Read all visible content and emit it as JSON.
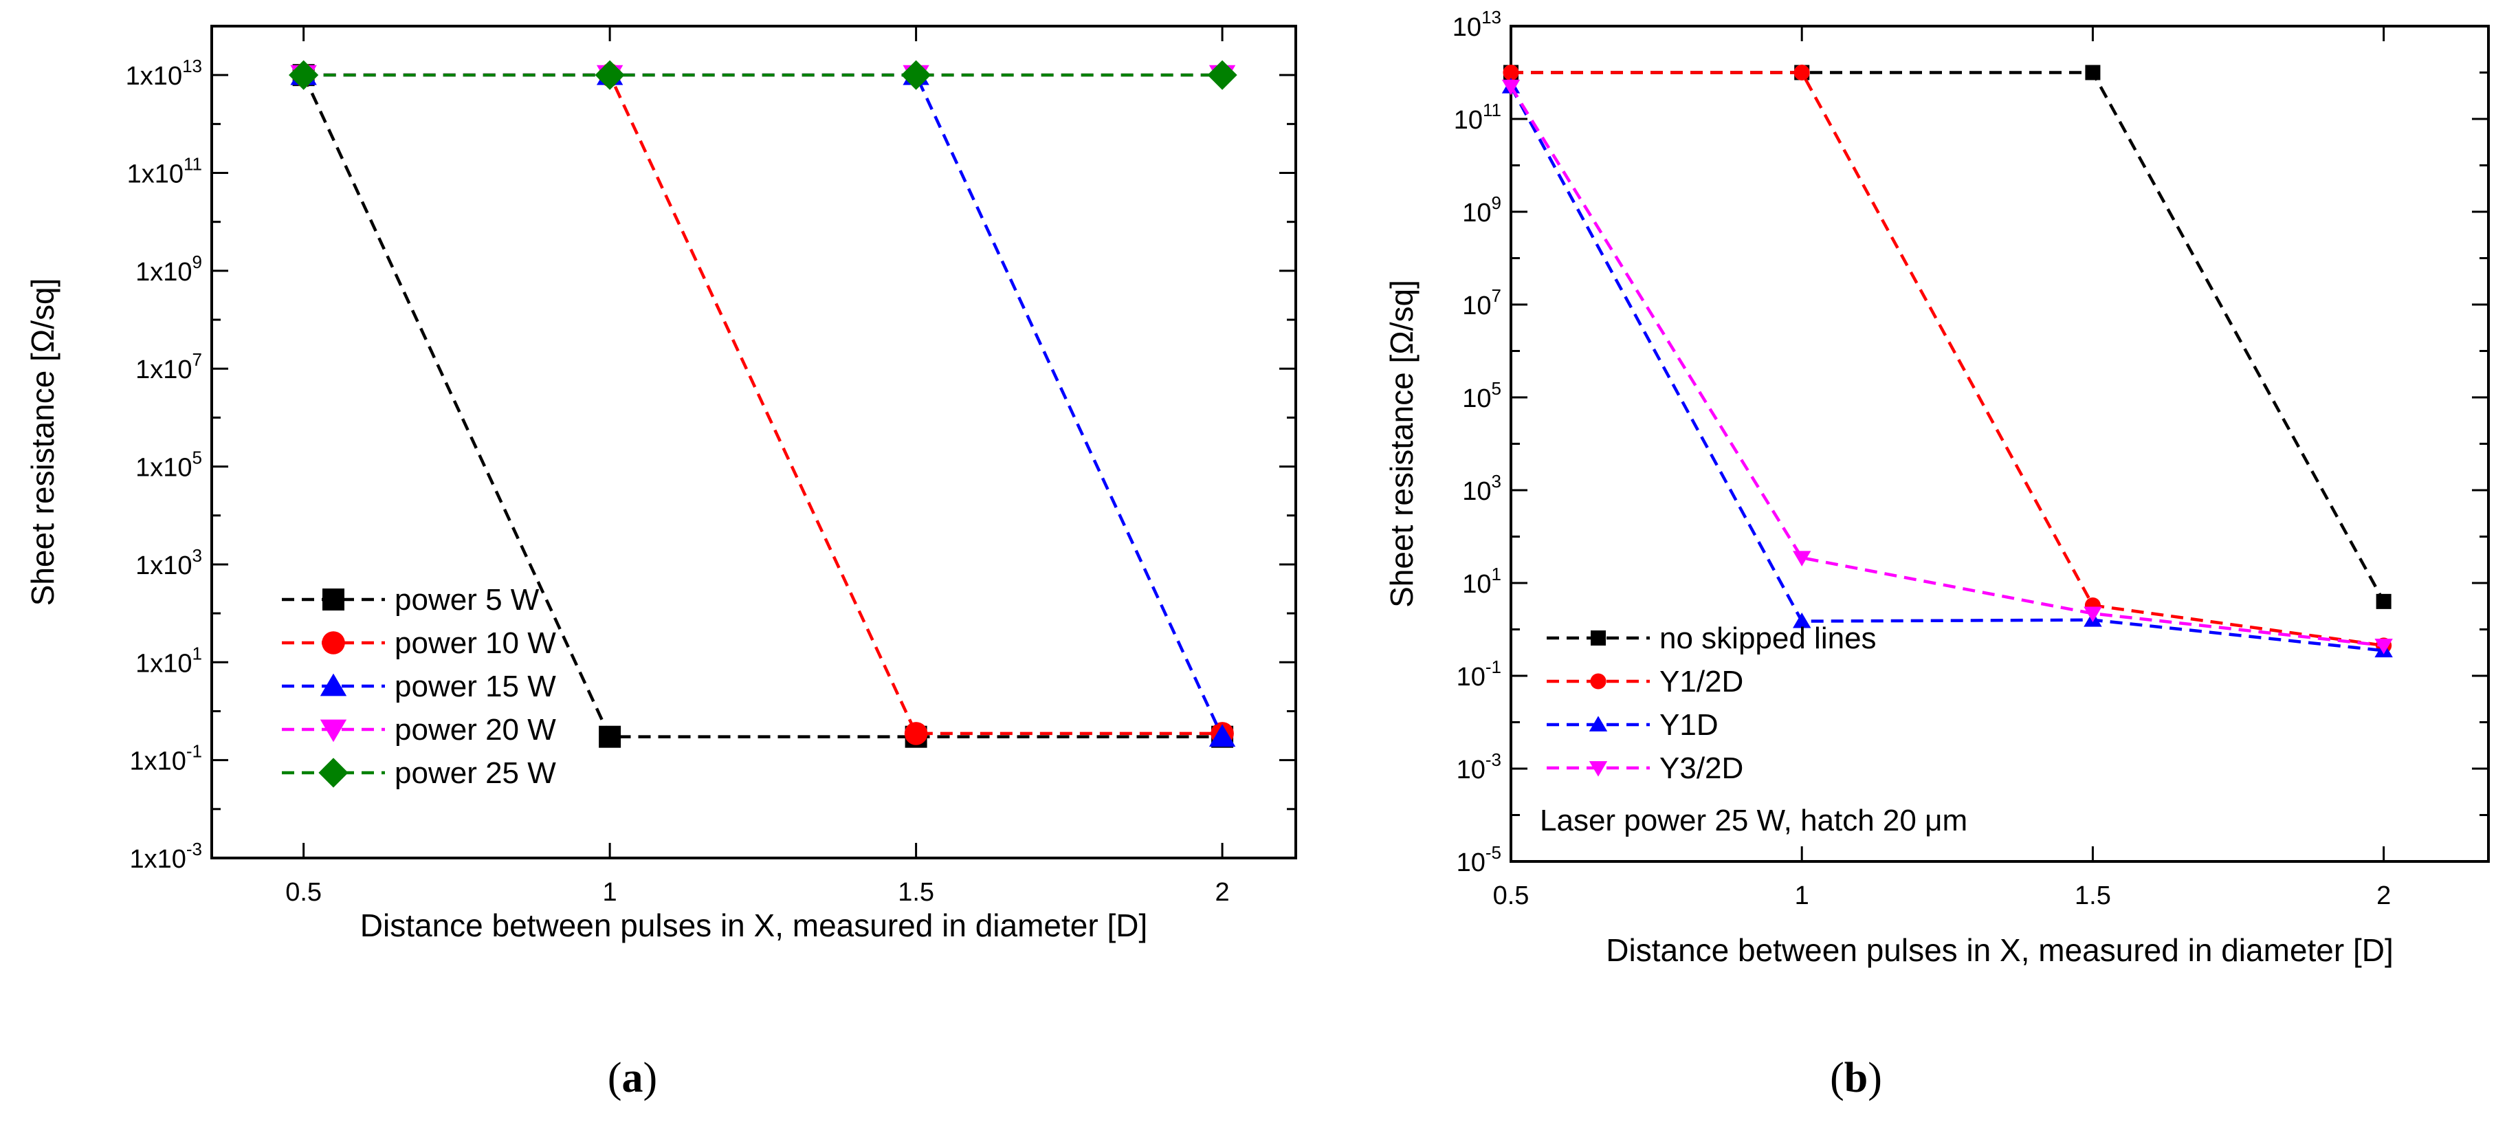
{
  "chart_data": [
    {
      "type": "line",
      "panel": "a",
      "caption": {
        "open": "(",
        "letter": "a",
        "close": ")"
      },
      "xlabel": "Distance between pulses in X, measured in diameter [D]",
      "ylabel": "Sheet resistance [Ω/sq]",
      "yscale": "log",
      "xlim": [
        0.35,
        2.12
      ],
      "ylim_exp": [
        -3,
        14
      ],
      "xticks": [
        "0.5",
        "1",
        "1.5",
        "2"
      ],
      "xtick_values": [
        0.5,
        1,
        1.5,
        2
      ],
      "ytick_base": "1x10",
      "ytick_exps": [
        -3,
        -1,
        1,
        3,
        5,
        7,
        9,
        11,
        13
      ],
      "ytick_exp_labels": [
        "-3",
        "-1",
        "1",
        "3",
        "5",
        "7",
        "9",
        "11",
        "13"
      ],
      "legend_position": "bottom-left",
      "series": [
        {
          "name": "power 5 W",
          "color": "#000000",
          "marker": "square",
          "x": [
            0.5,
            1,
            1.5,
            2
          ],
          "values": [
            10000000000000.0,
            0.3,
            0.3,
            0.3
          ]
        },
        {
          "name": "power 10 W",
          "color": "#ff0000",
          "marker": "circle",
          "x": [
            0.5,
            1,
            1.5,
            2
          ],
          "values": [
            10000000000000.0,
            10000000000000.0,
            0.35,
            0.35
          ]
        },
        {
          "name": "power 15 W",
          "color": "#0000ff",
          "marker": "triangle-up",
          "x": [
            0.5,
            1,
            1.5,
            2
          ],
          "values": [
            10000000000000.0,
            10000000000000.0,
            10000000000000.0,
            0.3
          ]
        },
        {
          "name": "power 20 W",
          "color": "#ff00ff",
          "marker": "triangle-down",
          "x": [
            0.5,
            1,
            1.5,
            2
          ],
          "values": [
            10000000000000.0,
            10000000000000.0,
            10000000000000.0,
            10000000000000.0
          ]
        },
        {
          "name": "power 25 W",
          "color": "#008000",
          "marker": "diamond",
          "x": [
            0.5,
            1,
            1.5,
            2
          ],
          "values": [
            10000000000000.0,
            10000000000000.0,
            10000000000000.0,
            10000000000000.0
          ]
        }
      ]
    },
    {
      "type": "line",
      "panel": "b",
      "caption": {
        "open": "(",
        "letter": "b",
        "close": ")"
      },
      "xlabel": "Distance between pulses in X, measured in diameter [D]",
      "ylabel": "Sheet resistance [Ω/sq]",
      "yscale": "log",
      "xlim": [
        0.5,
        2.18
      ],
      "ylim_exp": [
        -5,
        13
      ],
      "xticks": [
        "0.5",
        "1",
        "1.5",
        "2"
      ],
      "xtick_values": [
        0.5,
        1,
        1.5,
        2
      ],
      "ytick_base": "10",
      "ytick_exps": [
        -5,
        -3,
        -1,
        1,
        3,
        5,
        7,
        9,
        11,
        13
      ],
      "ytick_exp_labels": [
        "-5",
        "-3",
        "-1",
        "1",
        "3",
        "5",
        "7",
        "9",
        "11",
        "13"
      ],
      "legend_position": "bottom-left",
      "annotation": "Laser power 25 W, hatch 20 μm",
      "series": [
        {
          "name": "no skipped lines",
          "color": "#000000",
          "marker": "square",
          "x": [
            0.5,
            1,
            1.5,
            2
          ],
          "values": [
            1000000000000.0,
            1000000000000.0,
            1000000000000.0,
            4
          ]
        },
        {
          "name": "Y1/2D",
          "color": "#ff0000",
          "marker": "circle",
          "x": [
            0.5,
            1,
            1.5,
            2
          ],
          "values": [
            1000000000000.0,
            1000000000000.0,
            3.3,
            0.45
          ]
        },
        {
          "name": "Y1D",
          "color": "#0000ff",
          "marker": "triangle-up",
          "x": [
            0.5,
            1,
            1.5,
            2
          ],
          "values": [
            500000000000.0,
            1.5,
            1.6,
            0.35
          ]
        },
        {
          "name": "Y3/2D",
          "color": "#ff00ff",
          "marker": "triangle-down",
          "x": [
            0.5,
            1,
            1.5,
            2
          ],
          "values": [
            500000000000.0,
            35,
            2.2,
            0.45
          ]
        }
      ]
    }
  ]
}
